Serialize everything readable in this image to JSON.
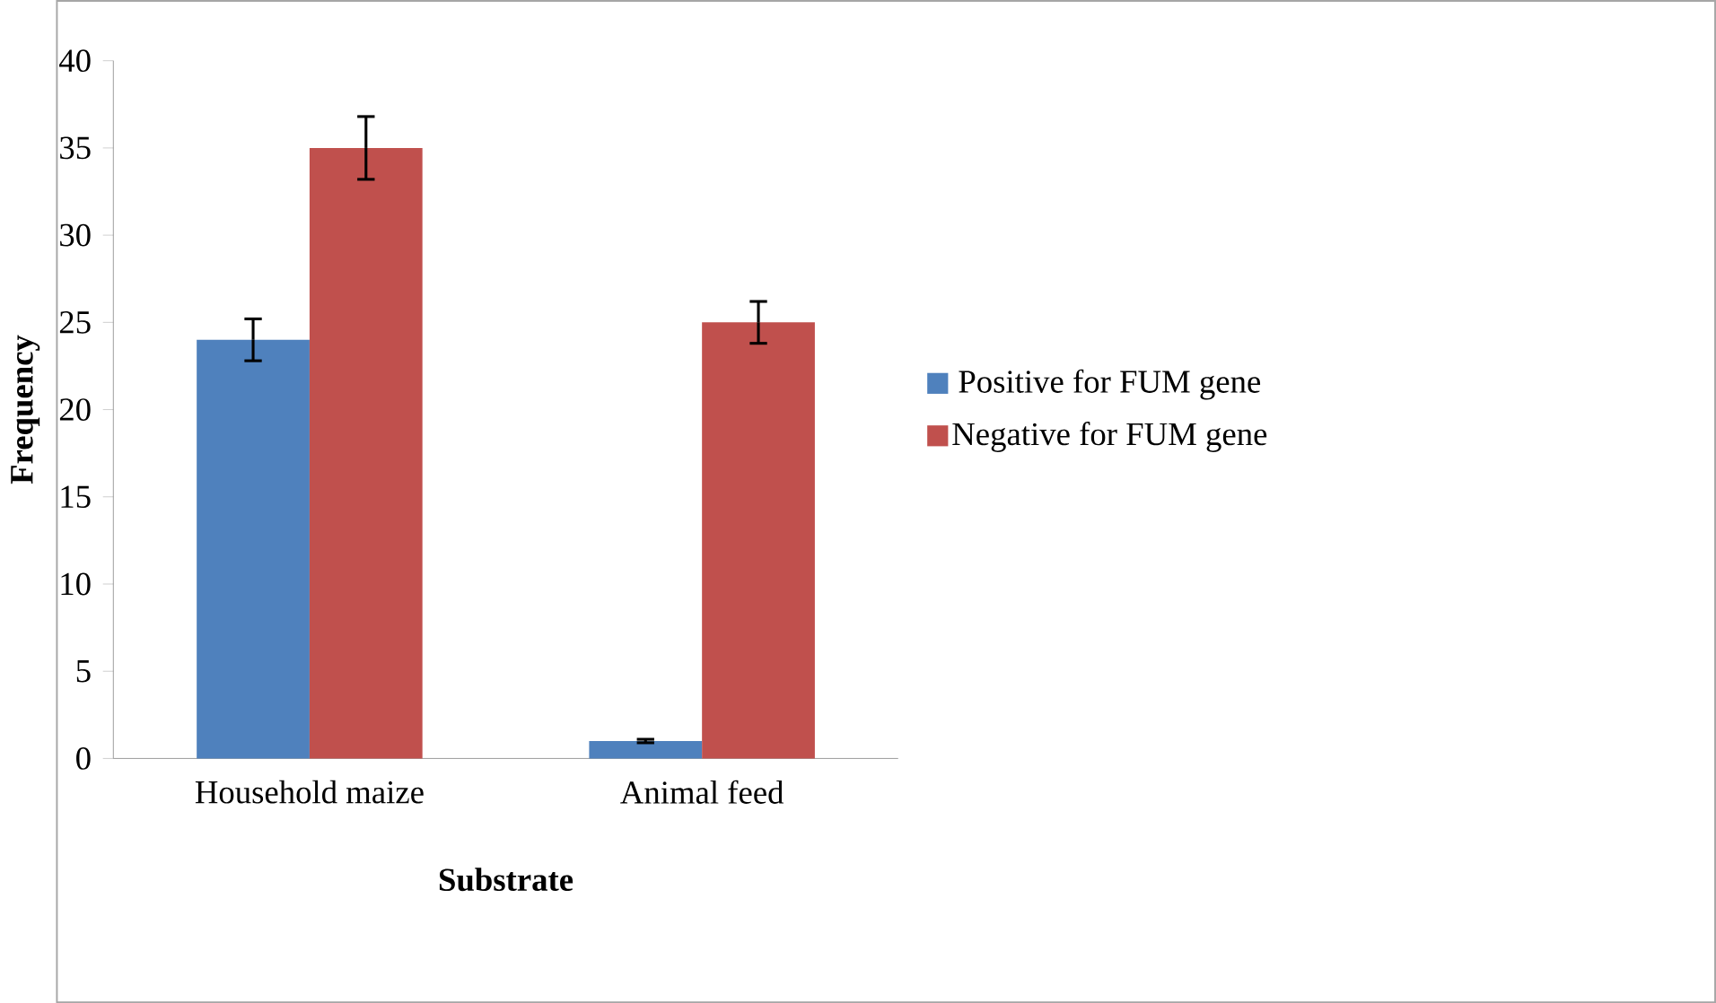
{
  "chart_data": {
    "type": "bar",
    "xlabel": "Substrate",
    "ylabel": "Frequency",
    "categories": [
      "Household maize",
      "Animal feed"
    ],
    "series": [
      {
        "name": "Positive for FUM gene",
        "color": "#4f81bd",
        "values": [
          24,
          1
        ],
        "errors": [
          1.2,
          0.1
        ]
      },
      {
        "name": "Negative for FUM gene",
        "color": "#c0504d",
        "values": [
          35,
          25
        ],
        "errors": [
          1.8,
          1.2
        ]
      }
    ],
    "ylim": [
      0,
      40
    ],
    "yticks": [
      0,
      5,
      10,
      15,
      20,
      25,
      30,
      35,
      40
    ],
    "legend": "right"
  }
}
